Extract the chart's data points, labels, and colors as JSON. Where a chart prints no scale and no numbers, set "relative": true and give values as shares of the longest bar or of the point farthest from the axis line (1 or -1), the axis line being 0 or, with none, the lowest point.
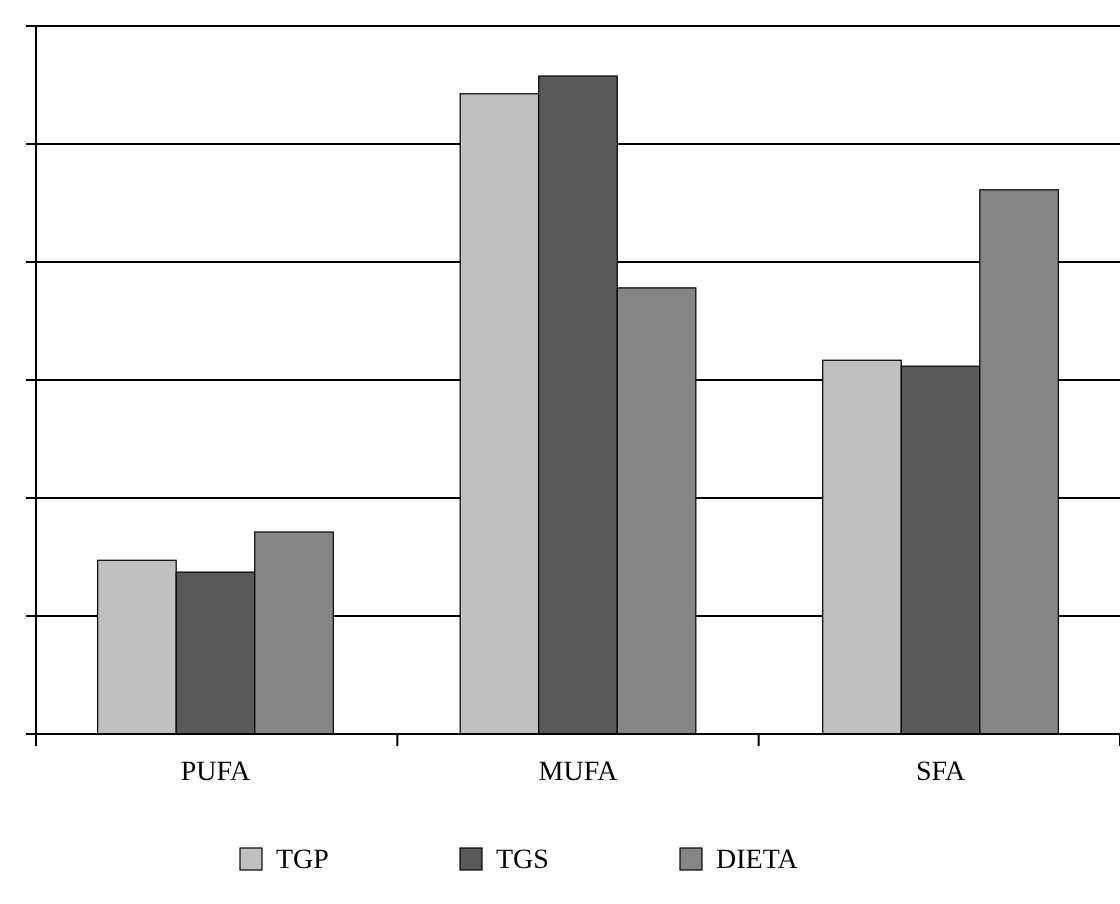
{
  "chart_data": {
    "type": "bar",
    "relative": true,
    "categories": [
      "PUFA",
      "MUFA",
      "SFA"
    ],
    "series": [
      {
        "name": "TGP",
        "color": "#c0c0c0",
        "values": [
          0.264,
          0.973,
          0.568
        ]
      },
      {
        "name": "TGS",
        "color": "#595959",
        "values": [
          0.246,
          1,
          0.559
        ]
      },
      {
        "name": "DIETA",
        "color": "#858585",
        "values": [
          0.307,
          0.678,
          0.827
        ]
      }
    ],
    "grid": "y",
    "legend": "bottom"
  }
}
